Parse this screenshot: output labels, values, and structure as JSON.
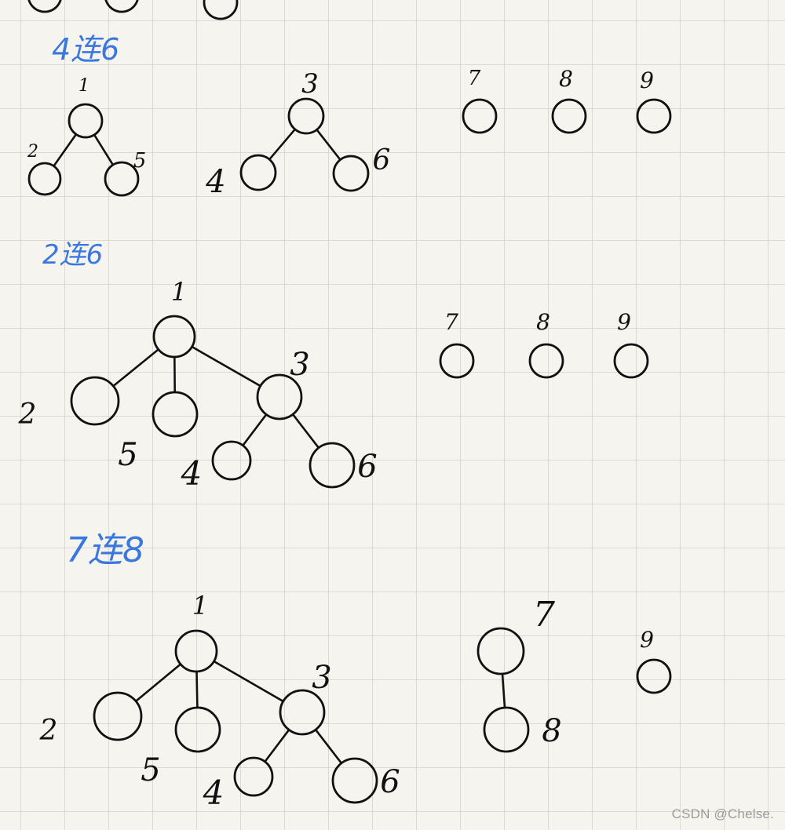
{
  "sections": [
    {
      "title": "4连6",
      "nodes": [
        "1",
        "2",
        "5",
        "3",
        "4",
        "6",
        "7",
        "8",
        "9"
      ],
      "edges": [
        [
          "1",
          "2"
        ],
        [
          "1",
          "5"
        ],
        [
          "3",
          "4"
        ],
        [
          "3",
          "6"
        ]
      ]
    },
    {
      "title": "2连6",
      "nodes": [
        "1",
        "2",
        "5",
        "3",
        "4",
        "6",
        "7",
        "8",
        "9"
      ],
      "edges": [
        [
          "1",
          "2"
        ],
        [
          "1",
          "5"
        ],
        [
          "1",
          "3"
        ],
        [
          "3",
          "4"
        ],
        [
          "3",
          "6"
        ]
      ]
    },
    {
      "title": "7连8",
      "nodes": [
        "1",
        "2",
        "5",
        "3",
        "4",
        "6",
        "7",
        "8",
        "9"
      ],
      "edges": [
        [
          "1",
          "2"
        ],
        [
          "1",
          "5"
        ],
        [
          "1",
          "3"
        ],
        [
          "3",
          "4"
        ],
        [
          "3",
          "6"
        ],
        [
          "7",
          "8"
        ]
      ]
    }
  ],
  "watermark": "CSDN @Chelse."
}
